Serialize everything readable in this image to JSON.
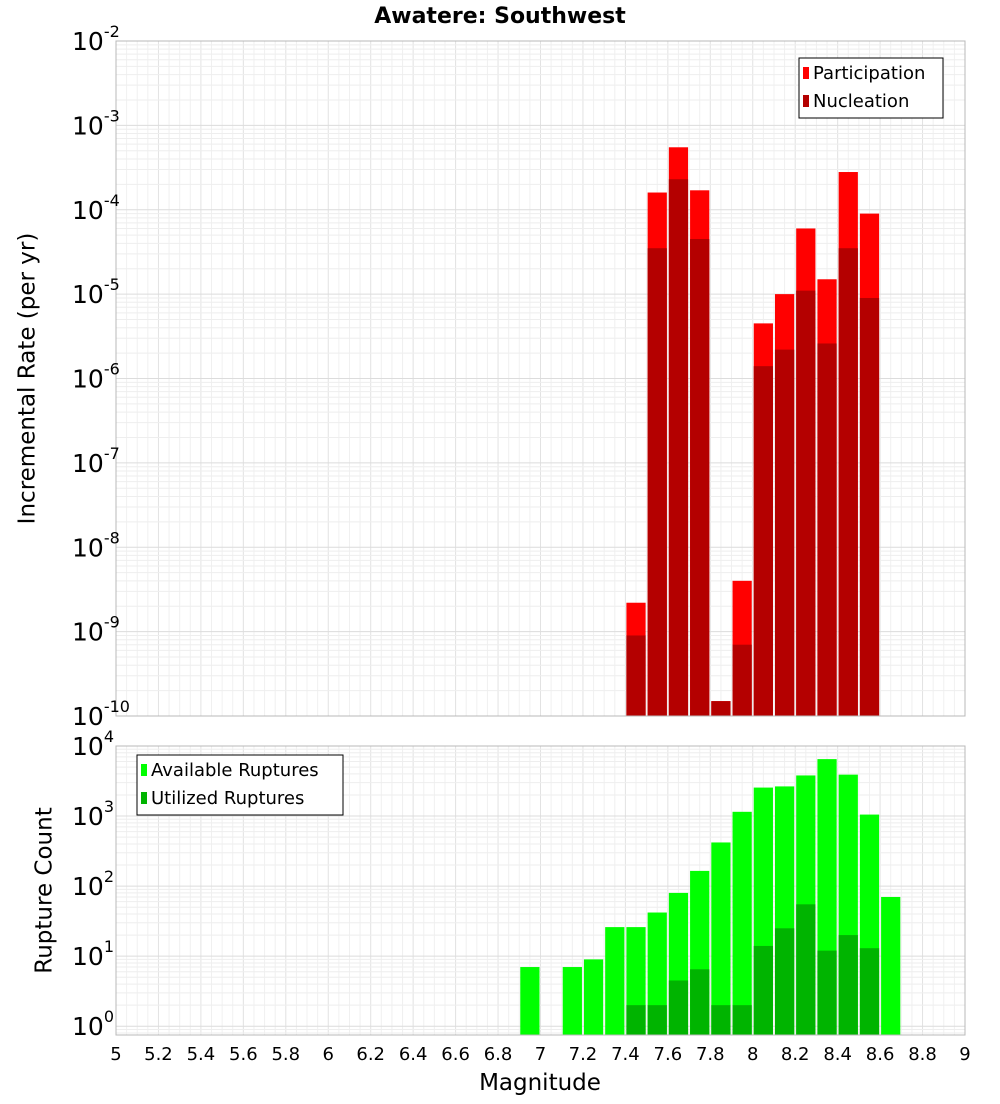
{
  "chart_data": {
    "type": "bar",
    "title": "Awatere: Southwest",
    "xlabel": "Magnitude",
    "xlim": [
      5,
      9
    ],
    "x_ticks": [
      "5",
      "5.2",
      "5.4",
      "5.6",
      "5.8",
      "6",
      "6.2",
      "6.4",
      "6.6",
      "6.8",
      "7",
      "7.2",
      "7.4",
      "7.6",
      "7.8",
      "8",
      "8.2",
      "8.4",
      "8.6",
      "8.8",
      "9"
    ],
    "panels": [
      {
        "id": "rate",
        "ylabel": "Incremental Rate (per yr)",
        "yscale": "log",
        "ylim": [
          1e-10,
          0.01
        ],
        "y_tick_labels": [
          {
            "base": "10",
            "exp": "-10"
          },
          {
            "base": "10",
            "exp": "-9"
          },
          {
            "base": "10",
            "exp": "-8"
          },
          {
            "base": "10",
            "exp": "-7"
          },
          {
            "base": "10",
            "exp": "-6"
          },
          {
            "base": "10",
            "exp": "-5"
          },
          {
            "base": "10",
            "exp": "-4"
          },
          {
            "base": "10",
            "exp": "-3"
          },
          {
            "base": "10",
            "exp": "-2"
          }
        ],
        "legend_position": "top-right",
        "series": [
          {
            "name": "Participation",
            "color": "#ff0000",
            "x": [
              7.45,
              7.55,
              7.65,
              7.75,
              7.85,
              7.95,
              8.05,
              8.15,
              8.25,
              8.35,
              8.45,
              8.55
            ],
            "values": [
              2.2e-09,
              0.00016,
              0.00055,
              0.00017,
              1.5e-10,
              4e-09,
              4.5e-06,
              1e-05,
              6e-05,
              1.5e-05,
              0.00028,
              9e-05
            ]
          },
          {
            "name": "Nucleation",
            "color": "#b40000",
            "x": [
              7.45,
              7.55,
              7.65,
              7.75,
              7.85,
              7.95,
              8.05,
              8.15,
              8.25,
              8.35,
              8.45,
              8.55
            ],
            "values": [
              9e-10,
              3.5e-05,
              0.00023,
              4.5e-05,
              1.5e-10,
              7e-10,
              1.4e-06,
              2.2e-06,
              1.1e-05,
              2.6e-06,
              3.5e-05,
              9e-06
            ]
          }
        ]
      },
      {
        "id": "count",
        "ylabel": "Rupture Count",
        "yscale": "log",
        "ylim": [
          0.75,
          10000
        ],
        "y_tick_labels": [
          {
            "base": "10",
            "exp": "0"
          },
          {
            "base": "10",
            "exp": "1"
          },
          {
            "base": "10",
            "exp": "2"
          },
          {
            "base": "10",
            "exp": "3"
          },
          {
            "base": "10",
            "exp": "4"
          }
        ],
        "legend_position": "top-left",
        "series": [
          {
            "name": "Available Ruptures",
            "color": "#00ff00",
            "x": [
              6.95,
              7.15,
              7.25,
              7.35,
              7.45,
              7.55,
              7.65,
              7.75,
              7.85,
              7.95,
              8.05,
              8.15,
              8.25,
              8.35,
              8.45,
              8.55,
              8.65
            ],
            "values": [
              7,
              7,
              9,
              26,
              26,
              42,
              80,
              165,
              420,
              1150,
              2550,
              2650,
              3800,
              6500,
              3900,
              1050,
              70
            ]
          },
          {
            "name": "Utilized Ruptures",
            "color": "#00b400",
            "x": [
              7.45,
              7.55,
              7.65,
              7.75,
              7.85,
              7.95,
              8.05,
              8.15,
              8.25,
              8.35,
              8.45,
              8.55
            ],
            "values": [
              2,
              2,
              4.5,
              6.5,
              2,
              2,
              14,
              25,
              55,
              12,
              20,
              13
            ]
          }
        ]
      }
    ]
  }
}
